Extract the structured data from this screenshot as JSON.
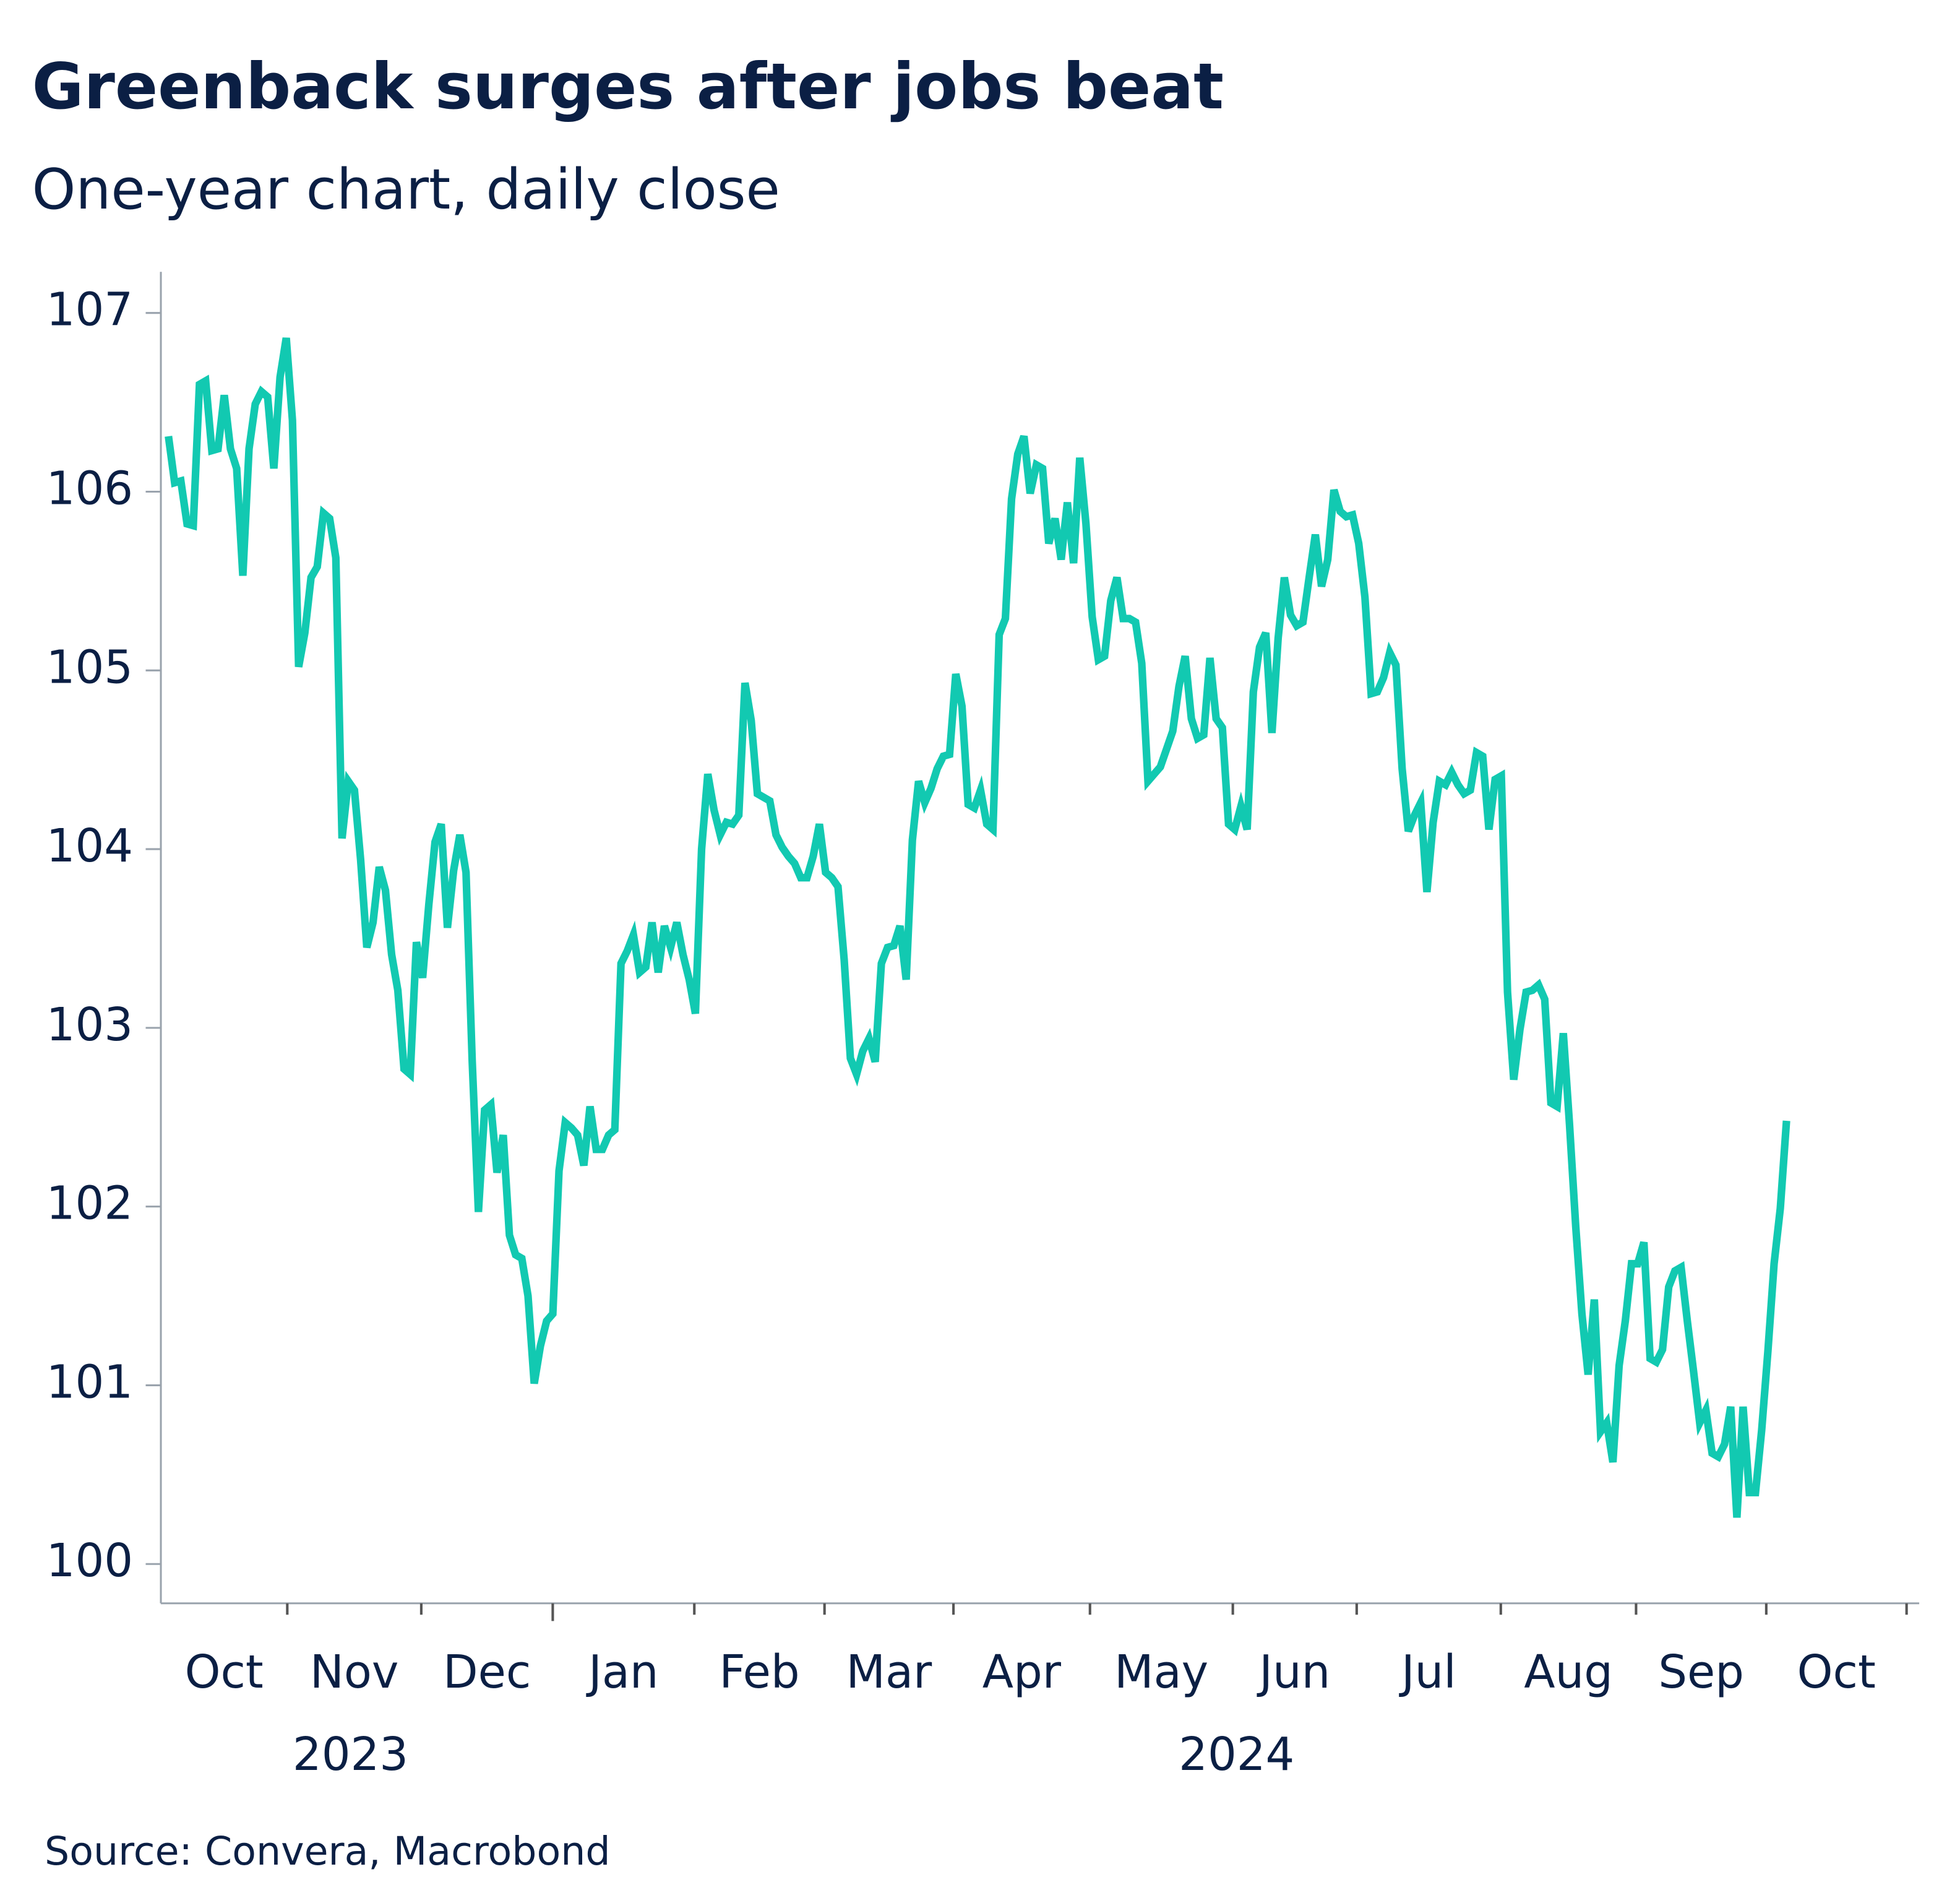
{
  "chart_data": {
    "type": "line",
    "title": "Greenback surges after jobs beat",
    "subtitle": "One-year chart, daily close",
    "source": "Source: Convera, Macrobond",
    "months": [
      "Oct",
      "Nov",
      "Dec",
      "Jan",
      "Feb",
      "Mar",
      "Apr",
      "May",
      "Jun",
      "Jul",
      "Aug",
      "Sep",
      "Oct"
    ],
    "years": [
      "2023",
      "2024"
    ],
    "ylim": [
      99.78,
      107.23
    ],
    "yticks": [
      100,
      101,
      102,
      103,
      104,
      105,
      106,
      107
    ],
    "series": [
      {
        "color": "#12c9b1",
        "values": [
          106.31,
          106.05,
          106.06,
          105.82,
          105.81,
          106.6,
          106.62,
          106.23,
          106.24,
          106.54,
          106.24,
          106.13,
          105.53,
          106.24,
          106.49,
          106.56,
          106.53,
          106.13,
          106.64,
          106.86,
          106.4,
          105.02,
          105.21,
          105.52,
          105.58,
          105.88,
          105.85,
          105.63,
          104.06,
          104.38,
          104.33,
          103.94,
          103.45,
          103.59,
          103.9,
          103.77,
          103.41,
          103.21,
          102.77,
          102.74,
          103.48,
          103.28,
          103.69,
          104.04,
          104.14,
          103.56,
          103.88,
          104.08,
          103.87,
          102.81,
          101.97,
          102.54,
          102.57,
          102.19,
          102.4,
          101.84,
          101.73,
          101.71,
          101.5,
          101.01,
          101.22,
          101.36,
          101.4,
          102.2,
          102.47,
          102.44,
          102.4,
          102.23,
          102.56,
          102.32,
          102.32,
          102.4,
          102.43,
          103.36,
          103.43,
          103.52,
          103.31,
          103.34,
          103.59,
          103.31,
          103.57,
          103.45,
          103.59,
          103.41,
          103.27,
          103.08,
          104.0,
          104.42,
          104.22,
          104.08,
          104.15,
          104.14,
          104.19,
          104.93,
          104.72,
          104.31,
          104.29,
          104.27,
          104.08,
          104.01,
          103.96,
          103.92,
          103.84,
          103.84,
          103.96,
          104.14,
          103.87,
          103.84,
          103.79,
          103.38,
          102.83,
          102.74,
          102.87,
          102.94,
          102.81,
          103.36,
          103.45,
          103.46,
          103.57,
          103.27,
          104.05,
          104.38,
          104.26,
          104.34,
          104.45,
          104.52,
          104.53,
          104.98,
          104.8,
          104.25,
          104.23,
          104.33,
          104.14,
          104.11,
          105.2,
          105.29,
          105.96,
          106.21,
          106.31,
          105.99,
          106.15,
          106.13,
          105.71,
          105.85,
          105.62,
          105.94,
          105.6,
          106.19,
          105.82,
          105.3,
          105.06,
          105.08,
          105.39,
          105.52,
          105.29,
          105.29,
          105.27,
          105.04,
          104.38,
          104.42,
          104.46,
          104.56,
          104.66,
          104.91,
          105.08,
          104.73,
          104.62,
          104.64,
          105.07,
          104.73,
          104.68,
          104.14,
          104.11,
          104.24,
          104.11,
          104.88,
          105.13,
          105.21,
          104.65,
          105.18,
          105.52,
          105.31,
          105.25,
          105.27,
          105.52,
          105.76,
          105.47,
          105.62,
          106.01,
          105.89,
          105.86,
          105.87,
          105.71,
          105.41,
          104.87,
          104.88,
          104.96,
          105.1,
          105.03,
          104.45,
          104.1,
          104.19,
          104.26,
          103.76,
          104.15,
          104.38,
          104.36,
          104.43,
          104.36,
          104.31,
          104.33,
          104.54,
          104.52,
          104.11,
          104.39,
          104.41,
          103.2,
          102.71,
          102.99,
          103.2,
          103.21,
          103.24,
          103.16,
          102.58,
          102.56,
          102.97,
          102.46,
          101.89,
          101.4,
          101.06,
          101.48,
          100.74,
          100.79,
          100.57,
          101.11,
          101.36,
          101.68,
          101.68,
          101.8,
          101.15,
          101.13,
          101.2,
          101.55,
          101.64,
          101.66,
          101.36,
          101.08,
          100.79,
          100.86,
          100.62,
          100.6,
          100.67,
          100.88,
          100.26,
          100.88,
          100.4,
          100.4,
          100.75,
          101.19,
          101.68,
          101.99,
          102.48
        ]
      }
    ]
  }
}
